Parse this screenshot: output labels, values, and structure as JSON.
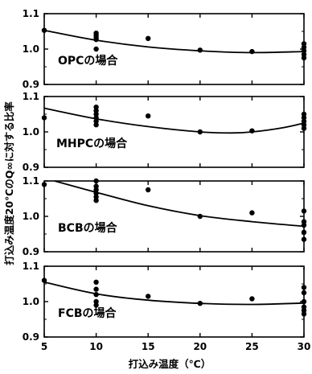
{
  "chart_data": {
    "type": "scatter",
    "xlabel": "打込み温度（℃）",
    "ylabel": "打込み温度20℃のQ∞に対する比率",
    "x_ticks": [
      "5",
      "10",
      "15",
      "20",
      "25",
      "30"
    ],
    "xlim": [
      5,
      30
    ],
    "ylim": [
      0.9,
      1.1
    ],
    "y_ticks": [
      "0.9",
      "1.0",
      "1.1"
    ],
    "grid": false,
    "panels": [
      {
        "label": "OPCの場合",
        "points": [
          [
            5,
            1.053
          ],
          [
            10,
            1.045
          ],
          [
            10,
            1.038
          ],
          [
            10,
            1.032
          ],
          [
            10,
            1.027
          ],
          [
            10,
            1.0
          ],
          [
            15,
            1.03
          ],
          [
            20,
            0.997
          ],
          [
            25,
            0.993
          ],
          [
            30,
            1.015
          ],
          [
            30,
            1.005
          ],
          [
            30,
            0.995
          ],
          [
            30,
            0.985
          ],
          [
            30,
            0.975
          ]
        ],
        "curve": [
          [
            5,
            1.053
          ],
          [
            10,
            1.025
          ],
          [
            15,
            1.006
          ],
          [
            20,
            0.995
          ],
          [
            25,
            0.99
          ],
          [
            30,
            0.993
          ]
        ]
      },
      {
        "label": "MHPCの場合",
        "points": [
          [
            5,
            1.04
          ],
          [
            10,
            1.07
          ],
          [
            10,
            1.06
          ],
          [
            10,
            1.05
          ],
          [
            10,
            1.04
          ],
          [
            10,
            1.03
          ],
          [
            10,
            1.02
          ],
          [
            15,
            1.045
          ],
          [
            20,
            1.0
          ],
          [
            25,
            1.003
          ],
          [
            30,
            1.05
          ],
          [
            30,
            1.04
          ],
          [
            30,
            1.03
          ],
          [
            30,
            1.02
          ],
          [
            30,
            1.01
          ]
        ],
        "curve": [
          [
            5,
            1.067
          ],
          [
            10,
            1.037
          ],
          [
            15,
            1.015
          ],
          [
            20,
            1.0
          ],
          [
            23,
            0.997
          ],
          [
            25,
            1.0
          ],
          [
            28,
            1.012
          ],
          [
            30,
            1.025
          ]
        ]
      },
      {
        "label": "BCBの場合",
        "points": [
          [
            5,
            1.09
          ],
          [
            10,
            1.1
          ],
          [
            10,
            1.085
          ],
          [
            10,
            1.075
          ],
          [
            10,
            1.065
          ],
          [
            10,
            1.055
          ],
          [
            10,
            1.045
          ],
          [
            15,
            1.075
          ],
          [
            20,
            1.0
          ],
          [
            25,
            1.01
          ],
          [
            30,
            1.015
          ],
          [
            30,
            0.985
          ],
          [
            30,
            0.975
          ],
          [
            30,
            0.955
          ],
          [
            30,
            0.935
          ]
        ],
        "curve": [
          [
            6,
            1.1
          ],
          [
            10,
            1.068
          ],
          [
            15,
            1.03
          ],
          [
            20,
            1.002
          ],
          [
            25,
            0.985
          ],
          [
            30,
            0.972
          ]
        ]
      },
      {
        "label": "FCBの場合",
        "points": [
          [
            5,
            1.06
          ],
          [
            10,
            1.055
          ],
          [
            10,
            1.035
          ],
          [
            10,
            1.02
          ],
          [
            10,
            1.0
          ],
          [
            10,
            0.99
          ],
          [
            15,
            1.015
          ],
          [
            20,
            0.995
          ],
          [
            25,
            1.008
          ],
          [
            30,
            1.04
          ],
          [
            30,
            1.025
          ],
          [
            30,
            1.0
          ],
          [
            30,
            0.985
          ],
          [
            30,
            0.975
          ],
          [
            30,
            0.965
          ]
        ],
        "curve": [
          [
            5,
            1.055
          ],
          [
            10,
            1.022
          ],
          [
            15,
            1.004
          ],
          [
            20,
            0.995
          ],
          [
            25,
            0.992
          ],
          [
            30,
            0.996
          ]
        ]
      }
    ]
  }
}
